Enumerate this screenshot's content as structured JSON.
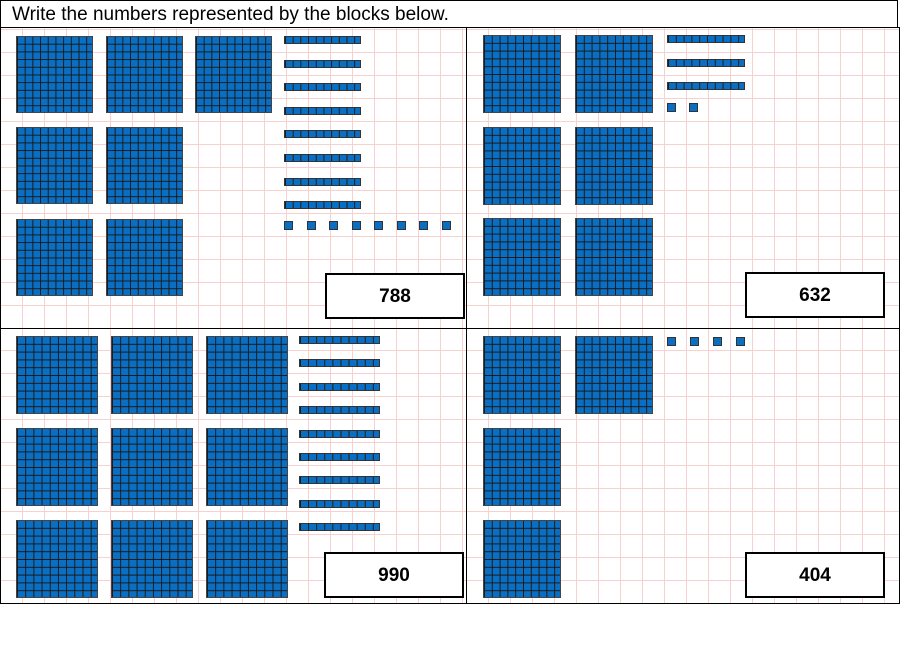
{
  "title": "Write the numbers represented by the blocks below.",
  "colors": {
    "block": "#0a6fc2",
    "grid": "#f7d0d0"
  },
  "panels": [
    {
      "hundreds": 7,
      "tens": 8,
      "ones": 8,
      "answer": "788"
    },
    {
      "hundreds": 6,
      "tens": 3,
      "ones": 2,
      "answer": "632"
    },
    {
      "hundreds": 9,
      "tens": 9,
      "ones": 0,
      "answer": "990"
    },
    {
      "hundreds": 4,
      "tens": 0,
      "ones": 4,
      "answer": "404"
    }
  ]
}
